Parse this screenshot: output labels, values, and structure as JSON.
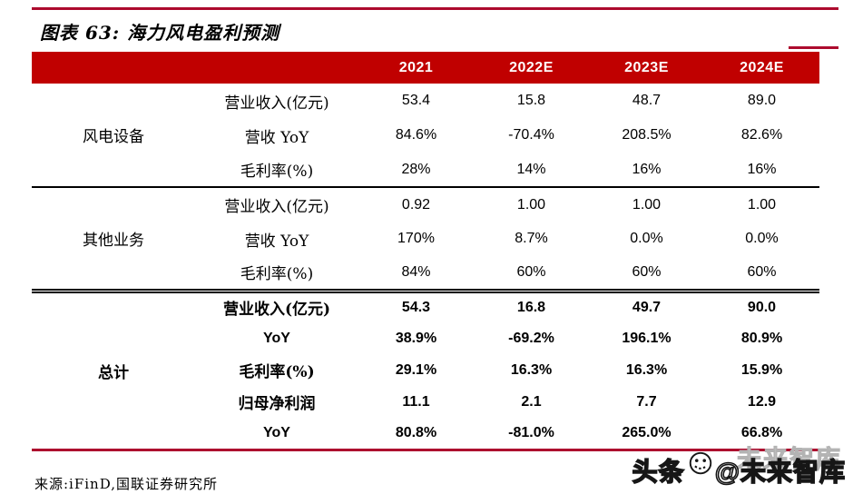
{
  "page": {
    "title": "图表 63: 海力风电盈利预测",
    "source": "来源:iFinD,国联证券研究所"
  },
  "colors": {
    "header_bg": "#c00000",
    "rule_red": "#ad0b2e",
    "header_text": "#ffffff"
  },
  "table": {
    "columns": [
      "2021",
      "2022E",
      "2023E",
      "2024E"
    ],
    "sections": [
      {
        "group": "风电设备",
        "bold": false,
        "rows": [
          {
            "label": "营业收入(亿元)",
            "values": [
              "53.4",
              "15.8",
              "48.7",
              "89.0"
            ]
          },
          {
            "label": "营收 YoY",
            "values": [
              "84.6%",
              "-70.4%",
              "208.5%",
              "82.6%"
            ]
          },
          {
            "label": "毛利率(%)",
            "values": [
              "28%",
              "14%",
              "16%",
              "16%"
            ]
          }
        ]
      },
      {
        "group": "其他业务",
        "bold": false,
        "rows": [
          {
            "label": "营业收入(亿元)",
            "values": [
              "0.92",
              "1.00",
              "1.00",
              "1.00"
            ]
          },
          {
            "label": "营收 YoY",
            "values": [
              "170%",
              "8.7%",
              "0.0%",
              "0.0%"
            ]
          },
          {
            "label": "毛利率(%)",
            "values": [
              "84%",
              "60%",
              "60%",
              "60%"
            ]
          }
        ]
      },
      {
        "group": "总计",
        "bold": true,
        "rows": [
          {
            "label": "营业收入(亿元)",
            "values": [
              "54.3",
              "16.8",
              "49.7",
              "90.0"
            ]
          },
          {
            "label": "YoY",
            "values": [
              "38.9%",
              "-69.2%",
              "196.1%",
              "80.9%"
            ]
          },
          {
            "label": "毛利率(%)",
            "values": [
              "29.1%",
              "16.3%",
              "16.3%",
              "15.9%"
            ]
          },
          {
            "label": "归母净利润",
            "values": [
              "11.1",
              "2.1",
              "7.7",
              "12.9"
            ]
          },
          {
            "label": "YoY",
            "values": [
              "80.8%",
              "-81.0%",
              "265.0%",
              "66.8%"
            ]
          }
        ]
      }
    ]
  },
  "watermark": {
    "ghost": "未来智库",
    "prefix": "头条",
    "handle": "@未来智库",
    "face_icon": "smiley-face-icon"
  }
}
